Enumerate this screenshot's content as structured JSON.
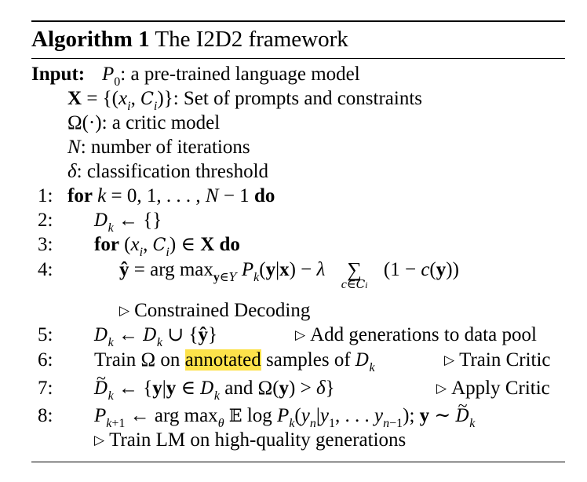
{
  "algorithm": {
    "label": "Algorithm 1",
    "name": "The I2D2 framework"
  },
  "input": {
    "keyword": "Input:",
    "items": [
      ": a pre-trained language model",
      ": Set of prompts and constraints",
      ": a critic model",
      ": number of iterations",
      ": classification threshold"
    ]
  },
  "steps": [
    {
      "num": "1:",
      "kw": "for",
      "do": "do"
    },
    {
      "num": "2:"
    },
    {
      "num": "3:",
      "kw": "for",
      "do": "do"
    },
    {
      "num": "4:",
      "argmax": "arg max",
      "comment": "Constrained Decoding"
    },
    {
      "num": "5:",
      "comment": "Add generations to data pool"
    },
    {
      "num": "6:",
      "pre": "Train Ω on ",
      "highlight": "annotated",
      "post": " samples of ",
      "comment": "Train Critic"
    },
    {
      "num": "7:",
      "and": "and",
      "comment": "Apply Critic"
    },
    {
      "num": "8:",
      "argmax": "arg max",
      "log": "log",
      "comment": "Train LM on high-quality generations"
    }
  ],
  "colors": {
    "highlight": "#fde24a",
    "text": "#000000",
    "background": "#ffffff"
  }
}
